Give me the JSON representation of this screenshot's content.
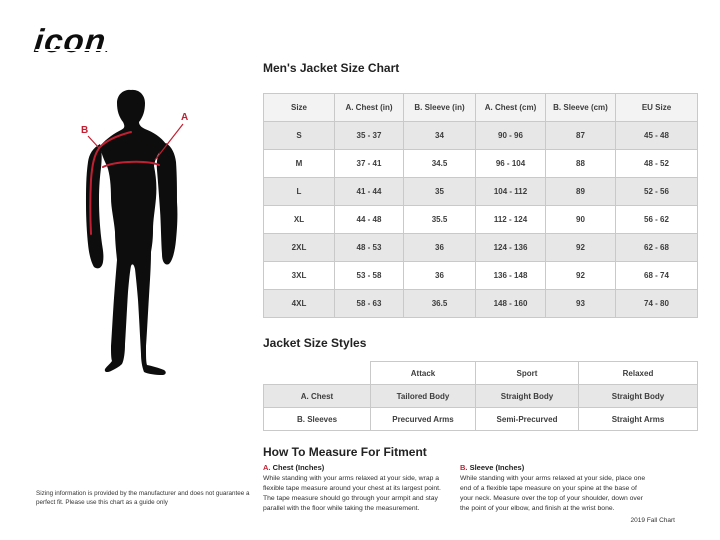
{
  "logo": {
    "text": "icon",
    "mark": "."
  },
  "colors": {
    "accent_red": "#c22032",
    "silhouette_black": "#0d0d0d",
    "table_border": "#c9c9c9",
    "table_header_bg": "#f3f3f3",
    "table_stripe_bg": "#e7e7e7"
  },
  "figure": {
    "label_a": "A",
    "label_b": "B"
  },
  "size_chart": {
    "title": "Men's Jacket Size Chart",
    "columns": [
      "Size",
      "A. Chest (in)",
      "B. Sleeve (in)",
      "A. Chest (cm)",
      "B. Sleeve (cm)",
      "EU Size"
    ],
    "rows": [
      [
        "S",
        "35 - 37",
        "34",
        "90 - 96",
        "87",
        "45 - 48"
      ],
      [
        "M",
        "37 - 41",
        "34.5",
        "96 - 104",
        "88",
        "48 - 52"
      ],
      [
        "L",
        "41 - 44",
        "35",
        "104 - 112",
        "89",
        "52 - 56"
      ],
      [
        "XL",
        "44 - 48",
        "35.5",
        "112 - 124",
        "90",
        "56 - 62"
      ],
      [
        "2XL",
        "48 - 53",
        "36",
        "124 - 136",
        "92",
        "62 - 68"
      ],
      [
        "3XL",
        "53 - 58",
        "36",
        "136 - 148",
        "92",
        "68 - 74"
      ],
      [
        "4XL",
        "58 - 63",
        "36.5",
        "148 - 160",
        "93",
        "74 - 80"
      ]
    ]
  },
  "style_chart": {
    "title": "Jacket Size Styles",
    "columns": [
      "",
      "Attack",
      "Sport",
      "Relaxed"
    ],
    "rows": [
      [
        "A. Chest",
        "Tailored Body",
        "Straight Body",
        "Straight Body"
      ],
      [
        "B. Sleeves",
        "Precurved Arms",
        "Semi-Precurved",
        "Straight Arms"
      ]
    ]
  },
  "measure": {
    "title": "How To Measure For Fitment",
    "sections": [
      {
        "marker": "A.",
        "heading": "Chest (Inches)",
        "body": "While standing with your arms relaxed at your side, wrap a flexible tape measure around your chest at its largest point. The tape measure should go through your armpit and stay parallel with the floor while taking the measurement."
      },
      {
        "marker": "B.",
        "heading": "Sleeve (Inches)",
        "body": "While standing with your arms relaxed at your side, place one end of a flexible tape measure on your spine at the base of your neck. Measure over the top of your shoulder, down over the point of your elbow, and finish at the wrist bone."
      }
    ]
  },
  "footer": {
    "disclaimer": "Sizing information is provided by the manufacturer and does not guarantee a perfect fit. Please use this chart as a guide only",
    "chart_version": "2019 Fall Chart"
  }
}
